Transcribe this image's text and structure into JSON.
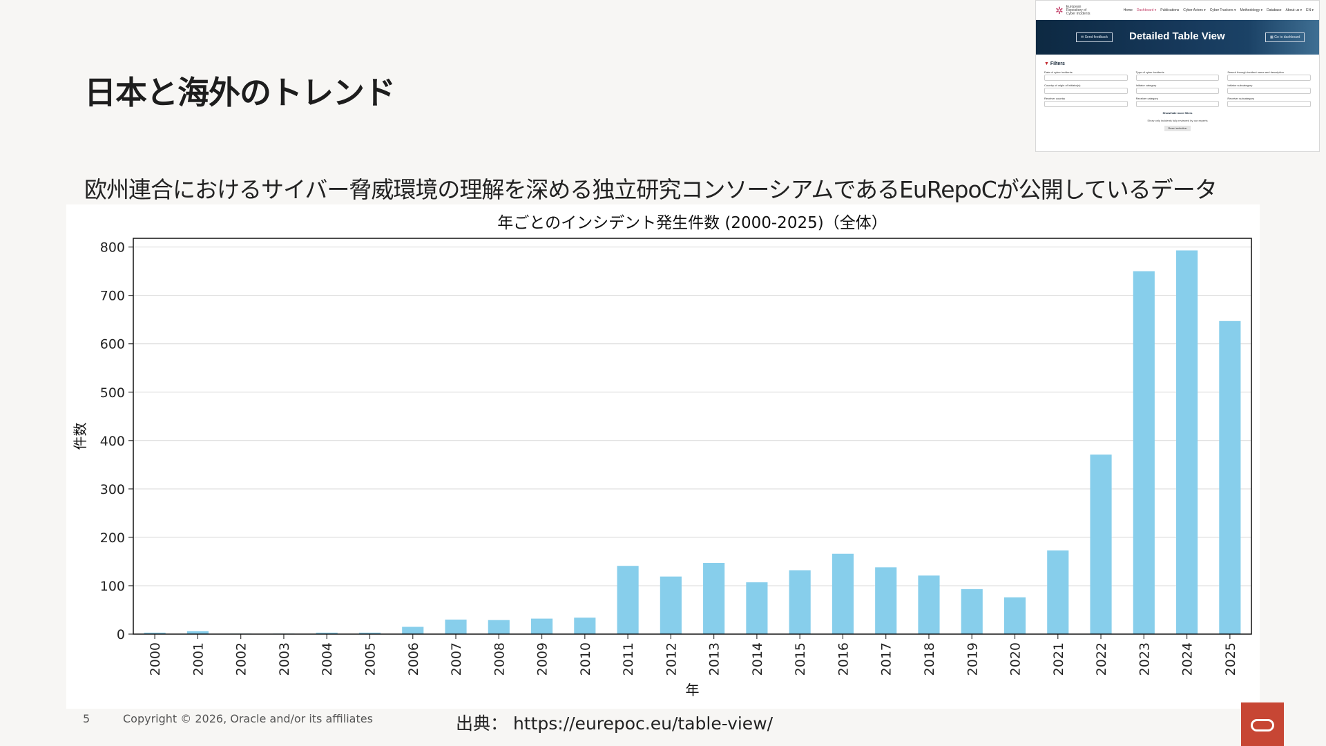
{
  "slide": {
    "title": "日本と海外のトレンド",
    "subtitle": "欧州連合におけるサイバー脅威環境の理解を深める独立研究コンソーシアムであるEuRepoCが公開しているデータ",
    "page_number": "5",
    "copyright": "Copyright © 2026, Oracle and/or its affiliates",
    "source": "出典： https://eurepoc.eu/table-view/"
  },
  "thumbnail": {
    "logo_text": [
      "European",
      "Repository of",
      "Cyber Incidents"
    ],
    "nav": [
      "Home",
      "Dashboard ▾",
      "Publications",
      "Cyber Actors ▾",
      "Cyber Trackers ▾",
      "Methodology ▾",
      "Database",
      "About us ▾",
      "EN ▾"
    ],
    "active_nav": "Dashboard ▾",
    "banner_title": "Detailed Table View",
    "btn_feedback": "Send feedback",
    "btn_dashboard": "Go to dashboard",
    "filters_title": "Filters",
    "fields": [
      "Date of cyber incidents",
      "Type of cyber incidents",
      "Search through incident name and description",
      "Country of origin of initiator(s)",
      "Initiator category",
      "Initiator subcategory",
      "Receiver country",
      "Receiver category",
      "Receiver subcategory"
    ],
    "show_more": "Show/hide more filters",
    "checkbox_label": "Show only incidents fully reviewed by our experts",
    "reset_label": "Reset selection"
  },
  "chart_data": {
    "type": "bar",
    "title": "年ごとのインシデント発生件数 (2000-2025)（全体）",
    "xlabel": "年",
    "ylabel": "件数",
    "categories": [
      "2000",
      "2001",
      "2002",
      "2003",
      "2004",
      "2005",
      "2006",
      "2007",
      "2008",
      "2009",
      "2010",
      "2011",
      "2012",
      "2013",
      "2014",
      "2015",
      "2016",
      "2017",
      "2018",
      "2019",
      "2020",
      "2021",
      "2022",
      "2023",
      "2024",
      "2025"
    ],
    "values": [
      3,
      6,
      1,
      1,
      3,
      3,
      15,
      30,
      29,
      32,
      34,
      141,
      119,
      147,
      107,
      132,
      166,
      138,
      121,
      93,
      76,
      173,
      371,
      750,
      793,
      647
    ],
    "ylim": [
      0,
      818
    ],
    "yticks": [
      0,
      100,
      200,
      300,
      400,
      500,
      600,
      700,
      800
    ],
    "bar_color": "#87ceeb",
    "grid": true
  },
  "colors": {
    "oracle_red": "#c74634",
    "banner_navy": "#0d2942"
  }
}
